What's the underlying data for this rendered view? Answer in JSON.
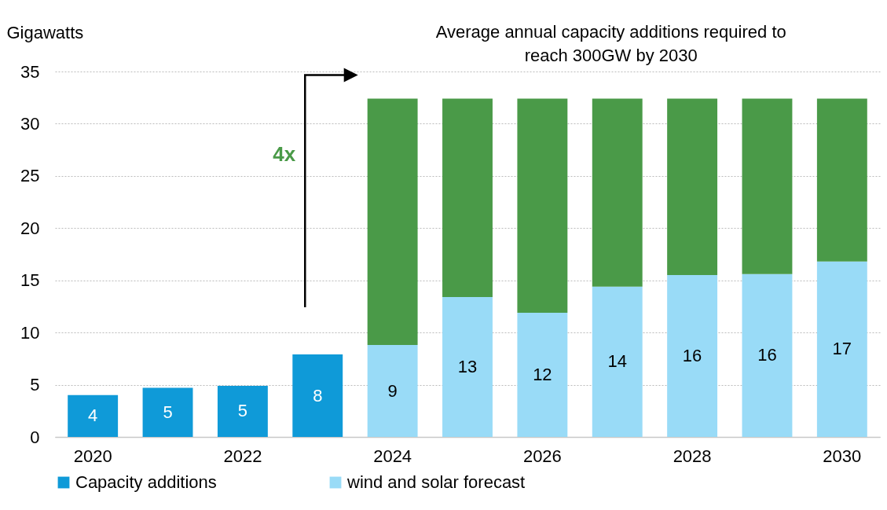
{
  "chart_data": {
    "type": "bar",
    "stacked": true,
    "ylabel": "Gigawatts",
    "categories": [
      "2020",
      null,
      "2022",
      null,
      "2024",
      null,
      "2026",
      null,
      "2028",
      null,
      "2030"
    ],
    "series": [
      {
        "name": "Capacity additions",
        "color": "#0f9ad8",
        "values": [
          4,
          4.7,
          4.9,
          7.9,
          null,
          null,
          null,
          null,
          null,
          null,
          null
        ],
        "value_labels": [
          "4",
          "5",
          "5",
          "8",
          null,
          null,
          null,
          null,
          null,
          null,
          null
        ]
      },
      {
        "name": "wind and solar forecast",
        "color": "#99dbf7",
        "values": [
          null,
          null,
          null,
          null,
          8.8,
          13.4,
          11.9,
          14.4,
          15.5,
          15.6,
          16.8
        ],
        "value_labels": [
          null,
          null,
          null,
          null,
          "9",
          "13",
          "12",
          "14",
          "16",
          "16",
          "17"
        ]
      },
      {
        "color": "#4a9a48",
        "values": [
          null,
          null,
          null,
          null,
          23.6,
          19.0,
          20.5,
          18.0,
          16.9,
          16.8,
          15.6
        ]
      }
    ],
    "ylim": [
      0,
      35
    ],
    "yticks": [
      0,
      5,
      10,
      15,
      20,
      25,
      30,
      35
    ],
    "grid": "y",
    "legend": "bottom",
    "annotations": [
      "Average annual capacity additions required to reach 300GW by 2030",
      "4x"
    ]
  }
}
